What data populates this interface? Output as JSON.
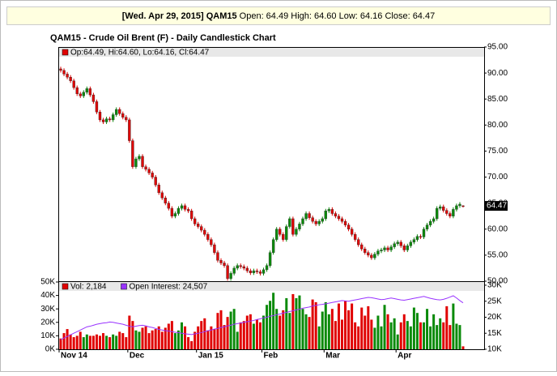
{
  "header": {
    "date_symbol": "[Wed. Apr 29, 2015] QAM15",
    "quote": "Open: 64.49 High: 64.60 Low: 64.16 Close: 64.47"
  },
  "chart_data": [
    {
      "type": "candlestick",
      "title": "QAM15 - Crude Oil Brent (F) - Daily Candlestick Chart",
      "legend": "Op:64.49, Hi:64.60, Lo:64.16, Cl:64.47",
      "up_color": "#0a8a0a",
      "down_color": "#e00000",
      "legend_color": "#e00000",
      "categories": [
        "Nov 14",
        null,
        null,
        null,
        null,
        null,
        null,
        null,
        null,
        null,
        null,
        null,
        null,
        null,
        null,
        null,
        null,
        null,
        null,
        null,
        null,
        "Dec",
        null,
        null,
        null,
        null,
        null,
        null,
        null,
        null,
        null,
        null,
        null,
        null,
        null,
        null,
        null,
        null,
        null,
        null,
        null,
        null,
        "Jan 15",
        null,
        null,
        null,
        null,
        null,
        null,
        null,
        null,
        null,
        null,
        null,
        null,
        null,
        null,
        null,
        null,
        null,
        null,
        null,
        "Feb",
        null,
        null,
        null,
        null,
        null,
        null,
        null,
        null,
        null,
        null,
        null,
        null,
        null,
        null,
        null,
        null,
        null,
        null,
        "Mar",
        null,
        null,
        null,
        null,
        null,
        null,
        null,
        null,
        null,
        null,
        null,
        null,
        null,
        null,
        null,
        null,
        null,
        null,
        null,
        null,
        null,
        "Apr",
        null,
        null,
        null,
        null,
        null,
        null,
        null,
        null,
        null,
        null,
        null,
        null,
        null,
        null,
        null,
        null,
        null,
        null,
        null,
        null
      ],
      "open": [
        90.8,
        90.5,
        89.8,
        89.2,
        88.5,
        87.2,
        86.0,
        85.6,
        86.3,
        87.0,
        85.8,
        84.5,
        82.5,
        81.0,
        80.6,
        81.2,
        81.0,
        82.0,
        83.0,
        82.2,
        81.5,
        81.0,
        77.0,
        72.0,
        73.5,
        74.0,
        72.0,
        71.5,
        70.8,
        70.0,
        68.5,
        67.0,
        66.0,
        65.0,
        64.0,
        62.5,
        63.0,
        64.0,
        64.5,
        63.8,
        63.5,
        62.0,
        61.0,
        60.5,
        59.8,
        59.0,
        58.0,
        57.0,
        55.5,
        54.0,
        53.5,
        53.0,
        50.5,
        51.5,
        52.5,
        53.0,
        52.8,
        52.5,
        52.0,
        51.6,
        52.0,
        51.8,
        51.5,
        52.2,
        53.0,
        55.5,
        58.0,
        60.0,
        59.0,
        58.0,
        60.5,
        62.0,
        59.0,
        60.0,
        61.0,
        62.0,
        63.0,
        62.2,
        61.5,
        61.0,
        61.5,
        62.0,
        63.5,
        63.8,
        63.0,
        62.5,
        62.0,
        61.5,
        60.8,
        60.0,
        59.0,
        58.0,
        57.0,
        56.2,
        55.5,
        55.0,
        54.5,
        55.2,
        55.8,
        56.0,
        56.4,
        56.0,
        56.6,
        57.2,
        57.5,
        56.8,
        56.0,
        56.8,
        57.5,
        58.0,
        58.6,
        58.5,
        60.0,
        60.8,
        61.5,
        62.0,
        64.0,
        64.3,
        63.6,
        63.0,
        62.5,
        63.8,
        64.5,
        64.49
      ],
      "high": [
        91.2,
        90.9,
        90.2,
        89.6,
        88.9,
        87.6,
        86.4,
        86.7,
        87.4,
        87.4,
        86.2,
        84.9,
        82.9,
        81.4,
        81.6,
        81.6,
        82.4,
        83.4,
        83.4,
        82.6,
        81.9,
        81.4,
        77.4,
        73.9,
        74.4,
        74.4,
        72.4,
        71.9,
        71.2,
        70.4,
        68.9,
        67.4,
        66.4,
        65.4,
        64.4,
        63.4,
        64.4,
        64.9,
        64.9,
        64.2,
        63.9,
        62.4,
        61.4,
        60.9,
        60.2,
        59.4,
        58.4,
        57.4,
        55.9,
        54.4,
        53.9,
        53.4,
        51.9,
        52.9,
        53.4,
        53.4,
        53.2,
        52.9,
        52.4,
        52.4,
        52.4,
        52.2,
        52.6,
        53.4,
        55.9,
        58.4,
        60.4,
        60.4,
        59.4,
        60.9,
        62.4,
        62.4,
        60.4,
        61.4,
        62.4,
        63.4,
        63.4,
        62.6,
        61.9,
        61.9,
        62.4,
        63.9,
        64.2,
        64.2,
        63.4,
        62.9,
        62.4,
        61.9,
        61.2,
        60.4,
        59.4,
        58.4,
        57.4,
        56.6,
        55.9,
        55.4,
        55.6,
        56.2,
        56.4,
        56.8,
        56.8,
        57.0,
        57.6,
        57.9,
        57.9,
        57.2,
        57.2,
        57.9,
        58.4,
        59.0,
        59.0,
        60.4,
        61.2,
        61.9,
        62.4,
        64.4,
        64.7,
        64.7,
        64.0,
        63.4,
        64.2,
        64.9,
        65.2,
        64.6
      ],
      "low": [
        90.1,
        89.4,
        88.8,
        88.1,
        86.8,
        85.6,
        85.2,
        85.2,
        85.9,
        85.4,
        84.1,
        82.1,
        80.6,
        80.2,
        80.2,
        80.6,
        80.6,
        81.6,
        81.8,
        81.1,
        80.6,
        76.6,
        71.6,
        71.6,
        73.1,
        71.6,
        71.1,
        70.4,
        69.6,
        68.1,
        66.6,
        65.6,
        64.6,
        63.6,
        62.1,
        62.1,
        62.6,
        63.6,
        63.4,
        63.1,
        61.6,
        60.6,
        60.1,
        59.4,
        58.6,
        57.6,
        56.6,
        55.1,
        53.6,
        53.1,
        52.6,
        50.1,
        50.1,
        51.1,
        52.1,
        52.4,
        52.1,
        51.6,
        51.2,
        51.2,
        51.4,
        51.1,
        51.1,
        51.8,
        52.6,
        55.1,
        57.6,
        58.6,
        57.6,
        57.6,
        60.1,
        58.6,
        58.6,
        59.6,
        60.6,
        61.6,
        61.8,
        61.1,
        60.6,
        60.6,
        61.1,
        61.6,
        63.1,
        62.6,
        62.1,
        61.6,
        61.1,
        60.4,
        59.6,
        58.6,
        57.6,
        56.6,
        55.8,
        55.1,
        54.6,
        54.1,
        54.1,
        54.8,
        55.4,
        55.6,
        55.6,
        55.6,
        56.2,
        56.8,
        56.4,
        55.6,
        55.6,
        56.4,
        57.1,
        57.6,
        58.1,
        58.1,
        59.6,
        60.4,
        61.1,
        61.6,
        63.6,
        63.2,
        62.6,
        62.1,
        62.1,
        63.4,
        64.1,
        64.16
      ],
      "close": [
        90.5,
        89.8,
        89.2,
        88.5,
        87.2,
        86.0,
        85.6,
        86.3,
        87.0,
        85.8,
        84.5,
        82.5,
        81.0,
        80.6,
        81.2,
        81.0,
        82.0,
        83.0,
        82.2,
        81.5,
        81.0,
        77.0,
        72.0,
        73.5,
        74.0,
        72.0,
        71.5,
        70.8,
        70.0,
        68.5,
        67.0,
        66.0,
        65.0,
        64.0,
        62.5,
        63.0,
        64.0,
        64.5,
        63.8,
        63.5,
        62.0,
        61.0,
        60.5,
        59.8,
        59.0,
        58.0,
        57.0,
        55.5,
        54.0,
        53.5,
        53.0,
        50.5,
        51.5,
        52.5,
        53.0,
        52.8,
        52.5,
        52.0,
        51.6,
        52.0,
        51.8,
        51.5,
        52.2,
        53.0,
        55.5,
        58.0,
        60.0,
        59.0,
        58.0,
        60.5,
        62.0,
        59.0,
        60.0,
        61.0,
        62.0,
        63.0,
        62.2,
        61.5,
        61.0,
        61.5,
        62.0,
        63.5,
        63.8,
        63.0,
        62.5,
        62.0,
        61.5,
        60.8,
        60.0,
        59.0,
        58.0,
        57.0,
        56.2,
        55.5,
        55.0,
        54.5,
        55.2,
        55.8,
        56.0,
        56.4,
        56.0,
        56.6,
        57.2,
        57.5,
        56.8,
        56.0,
        56.8,
        57.5,
        58.0,
        58.6,
        58.5,
        60.0,
        60.8,
        61.5,
        62.0,
        64.0,
        64.3,
        63.6,
        63.0,
        62.5,
        63.8,
        64.5,
        64.8,
        64.47
      ],
      "ylim": [
        50,
        95
      ],
      "yticks": [
        {
          "value": 50,
          "label": "50.00"
        },
        {
          "value": 55,
          "label": "55.00"
        },
        {
          "value": 60,
          "label": "60.00"
        },
        {
          "value": 65,
          "label": "65.00"
        },
        {
          "value": 70,
          "label": "70.00"
        },
        {
          "value": 75,
          "label": "75.00"
        },
        {
          "value": 80,
          "label": "80.00"
        },
        {
          "value": 85,
          "label": "85.00"
        },
        {
          "value": 90,
          "label": "90.00"
        },
        {
          "value": 95,
          "label": "95.00"
        }
      ]
    },
    {
      "type": "volume",
      "series": [
        {
          "name": "Vol: 2,184",
          "color": "#e00000",
          "values": [
            8000,
            12000,
            15000,
            11000,
            9000,
            10000,
            13000,
            9000,
            11000,
            10000,
            10000,
            11000,
            10000,
            12000,
            10000,
            9000,
            11000,
            10000,
            13000,
            12000,
            9000,
            25000,
            21000,
            14000,
            13000,
            16000,
            17000,
            12000,
            14000,
            15000,
            17000,
            13000,
            16000,
            19000,
            21000,
            12000,
            14000,
            20000,
            17000,
            9000,
            6000,
            13000,
            17000,
            21000,
            23000,
            14000,
            17000,
            15000,
            27000,
            29000,
            18000,
            24000,
            28000,
            30000,
            13000,
            20000,
            21000,
            25000,
            26000,
            19000,
            22000,
            20000,
            25000,
            33000,
            36000,
            42000,
            30000,
            25000,
            29000,
            38000,
            27000,
            41000,
            38000,
            40000,
            30000,
            26000,
            24000,
            37000,
            35000,
            17000,
            28000,
            35000,
            26000,
            30000,
            21000,
            34000,
            22000,
            36000,
            29000,
            34000,
            20000,
            17000,
            31000,
            25000,
            32000,
            22000,
            16000,
            25000,
            17000,
            33000,
            26000,
            20000,
            23000,
            11000,
            20000,
            26000,
            21000,
            17000,
            31000,
            27000,
            20000,
            20000,
            30000,
            17000,
            26000,
            18000,
            23000,
            20000,
            32000,
            18000,
            34000,
            19000,
            18000,
            2184
          ]
        },
        {
          "name": "Open Interest: 24,507",
          "color": "#9933ff",
          "axis": "y2",
          "values": [
            13000,
            13500,
            14000,
            14500,
            15000,
            15500,
            16000,
            16500,
            17000,
            17200,
            17500,
            17800,
            18000,
            18200,
            18300,
            18500,
            18400,
            18200,
            18000,
            17800,
            17500,
            17200,
            17000,
            17200,
            17400,
            17500,
            17300,
            17000,
            16800,
            16500,
            16200,
            16000,
            15800,
            15700,
            15500,
            15300,
            15200,
            15000,
            14800,
            14700,
            14600,
            14800,
            15000,
            15200,
            15500,
            15800,
            16000,
            16300,
            16500,
            16800,
            17000,
            17300,
            17500,
            17800,
            18000,
            18200,
            18400,
            18600,
            18800,
            19000,
            19300,
            19500,
            19800,
            20000,
            20300,
            20500,
            20800,
            21000,
            21300,
            21500,
            21800,
            22000,
            22300,
            22500,
            22800,
            23000,
            23200,
            23500,
            23700,
            23900,
            24000,
            24200,
            24400,
            24600,
            24800,
            25000,
            25200,
            25100,
            25000,
            25200,
            25400,
            25600,
            25800,
            26000,
            26200,
            26100,
            25900,
            25700,
            25500,
            25600,
            25800,
            26000,
            25800,
            25600,
            25400,
            25300,
            25500,
            25700,
            25900,
            26100,
            26300,
            26500,
            26200,
            25900,
            25700,
            25500,
            25400,
            25600,
            25900,
            26300,
            26700,
            26000,
            25200,
            24507
          ]
        }
      ],
      "ylim": [
        0,
        50000
      ],
      "yticks": [
        {
          "value": 0,
          "label": "0K"
        },
        {
          "value": 10000,
          "label": "10K"
        },
        {
          "value": 20000,
          "label": "20K"
        },
        {
          "value": 30000,
          "label": "30K"
        },
        {
          "value": 40000,
          "label": "40K"
        },
        {
          "value": 50000,
          "label": "50K"
        }
      ],
      "y2lim": [
        10000,
        31000
      ],
      "y2ticks": [
        {
          "value": 10000,
          "label": "10K"
        },
        {
          "value": 15000,
          "label": "15K"
        },
        {
          "value": 20000,
          "label": "20K"
        },
        {
          "value": 25000,
          "label": "25K"
        },
        {
          "value": 30000,
          "label": "30K"
        }
      ]
    }
  ]
}
